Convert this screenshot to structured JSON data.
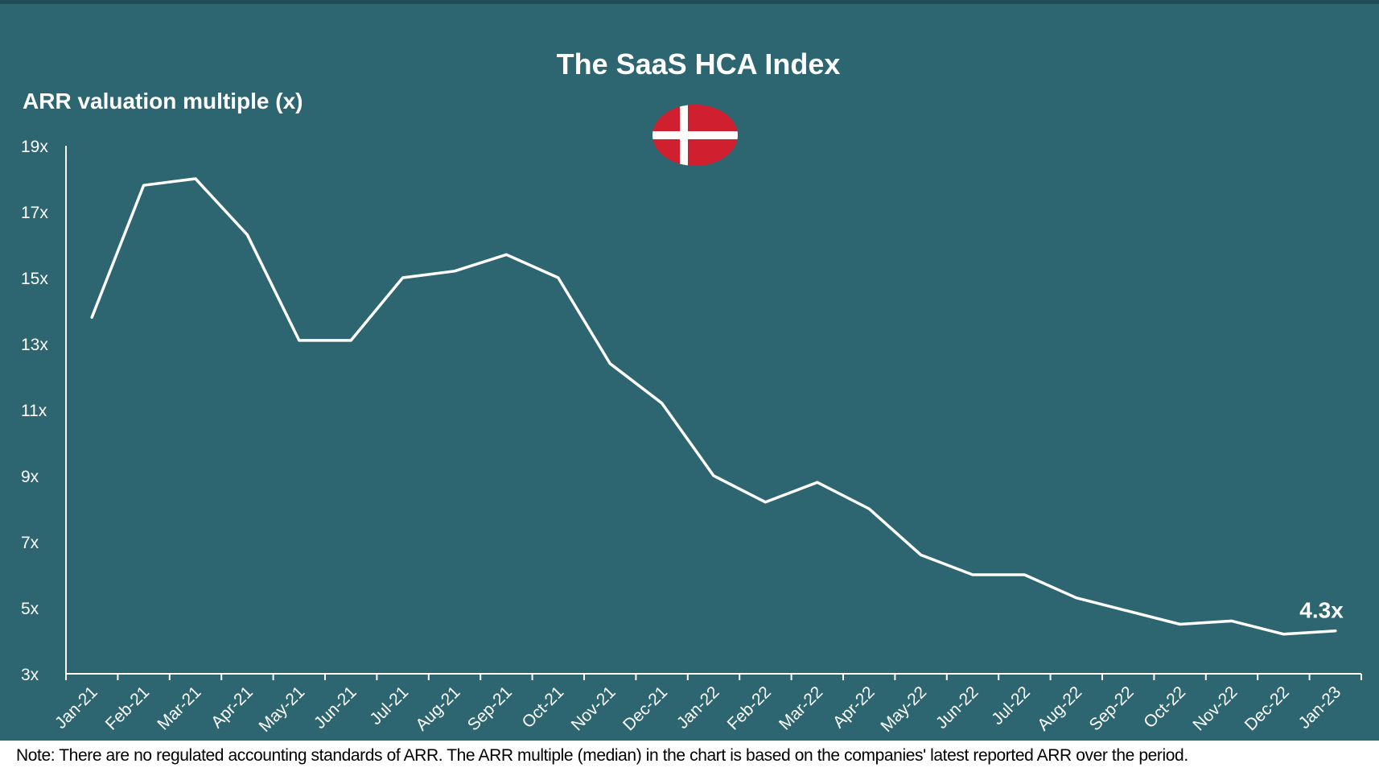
{
  "colors": {
    "background": "#2d6670",
    "line": "#ffffff",
    "axis": "#ffffff",
    "text": "#ffffff",
    "flag_red": "#d0202f",
    "flag_cross": "#ffffff"
  },
  "flag_icon": "denmark-flag-icon",
  "chart_data": {
    "type": "line",
    "title": "The SaaS HCA Index",
    "ylabel": "ARR valuation multiple (x)",
    "xlabel": "",
    "grid": false,
    "legend": "none",
    "ylim": [
      3,
      19
    ],
    "yticks": [
      3,
      5,
      7,
      9,
      11,
      13,
      15,
      17,
      19
    ],
    "ytick_labels": [
      "3x",
      "5x",
      "7x",
      "9x",
      "11x",
      "13x",
      "15x",
      "17x",
      "19x"
    ],
    "categories": [
      "Jan-21",
      "Feb-21",
      "Mar-21",
      "Apr-21",
      "May-21",
      "Jun-21",
      "Jul-21",
      "Aug-21",
      "Sep-21",
      "Oct-21",
      "Nov-21",
      "Dec-21",
      "Jan-22",
      "Feb-22",
      "Mar-22",
      "Apr-22",
      "May-22",
      "Jun-22",
      "Jul-22",
      "Aug-22",
      "Sep-22",
      "Oct-22",
      "Nov-22",
      "Dec-22",
      "Jan-23"
    ],
    "series": [
      {
        "values": [
          13.8,
          17.8,
          18.0,
          16.3,
          13.1,
          13.1,
          15.0,
          15.2,
          15.7,
          15.0,
          12.4,
          11.2,
          9.0,
          8.2,
          8.8,
          8.0,
          6.6,
          6.0,
          6.0,
          5.3,
          4.9,
          4.5,
          4.6,
          4.2,
          4.3
        ]
      }
    ],
    "annotations": [
      {
        "category": "Jan-23",
        "value": 4.3,
        "text": "4.3x"
      }
    ]
  },
  "footnote": "Note: There are no regulated accounting standards of ARR. The ARR multiple (median) in the chart is based on the companies' latest reported ARR over the period."
}
